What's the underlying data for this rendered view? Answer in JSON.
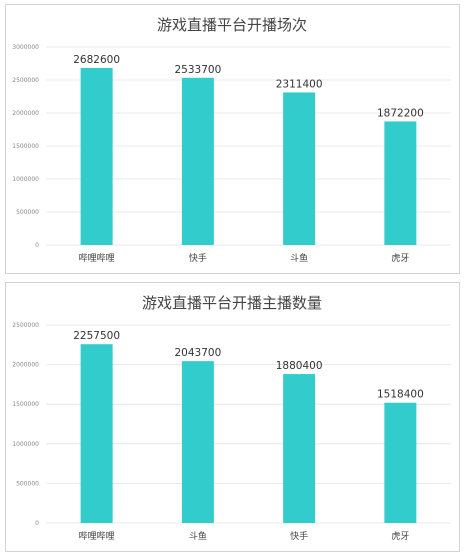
{
  "chart_data": [
    {
      "type": "bar",
      "title": "游戏直播平台开播场次",
      "categories": [
        "哔哩哔哩",
        "快手",
        "斗鱼",
        "虎牙"
      ],
      "values": [
        2682600,
        2533700,
        2311400,
        1872200
      ],
      "yticks": [
        "3000000",
        "2500000",
        "2000000",
        "1500000",
        "1000000",
        "500000",
        "0"
      ],
      "ylim": [
        0,
        3000000
      ],
      "grid": true,
      "color": "#33cccc"
    },
    {
      "type": "bar",
      "title": "游戏直播平台开播主播数量",
      "categories": [
        "哔哩哔哩",
        "斗鱼",
        "快手",
        "虎牙"
      ],
      "values": [
        2257500,
        2043700,
        1880400,
        1518400
      ],
      "yticks": [
        "2500000",
        "2000000",
        "1500000",
        "1000000",
        "500000",
        "0"
      ],
      "ylim": [
        0,
        2500000
      ],
      "grid": true,
      "color": "#33cccc"
    }
  ]
}
